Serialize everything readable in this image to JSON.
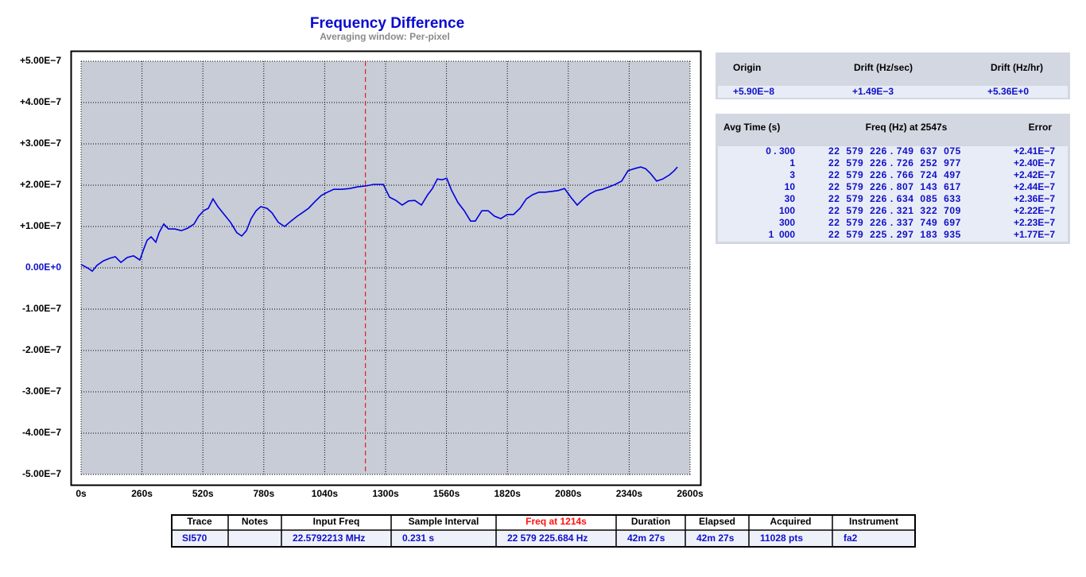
{
  "chart_data": {
    "type": "line",
    "title": "Frequency Difference",
    "subtitle": "Averaging window: Per-pixel",
    "color": "#0000e0",
    "grid": true,
    "cursor_x": 1214,
    "cursor_color": "#e00000",
    "xlim": [
      0,
      2600
    ],
    "xticks": [
      {
        "value": 0,
        "label": "0s"
      },
      {
        "value": 260,
        "label": "260s"
      },
      {
        "value": 520,
        "label": "520s"
      },
      {
        "value": 780,
        "label": "780s"
      },
      {
        "value": 1040,
        "label": "1040s"
      },
      {
        "value": 1300,
        "label": "1300s"
      },
      {
        "value": 1560,
        "label": "1560s"
      },
      {
        "value": 1820,
        "label": "1820s"
      },
      {
        "value": 2080,
        "label": "2080s"
      },
      {
        "value": 2340,
        "label": "2340s"
      },
      {
        "value": 2600,
        "label": "2600s"
      }
    ],
    "ylim": [
      -5e-07,
      5e-07
    ],
    "yticks": [
      {
        "value": 5e-07,
        "label": "+5.00E−7"
      },
      {
        "value": 4e-07,
        "label": "+4.00E−7"
      },
      {
        "value": 3e-07,
        "label": "+3.00E−7"
      },
      {
        "value": 2e-07,
        "label": "+2.00E−7"
      },
      {
        "value": 1e-07,
        "label": "+1.00E−7"
      },
      {
        "value": 0,
        "label": "0.00E+0"
      },
      {
        "value": -1e-07,
        "label": "-1.00E−7"
      },
      {
        "value": -2e-07,
        "label": "-2.00E−7"
      },
      {
        "value": -3e-07,
        "label": "-3.00E−7"
      },
      {
        "value": -4e-07,
        "label": "-4.00E−7"
      },
      {
        "value": -5e-07,
        "label": "-5.00E−7"
      }
    ],
    "x": [
      0,
      27,
      48,
      68,
      95,
      122,
      146,
      170,
      197,
      224,
      251,
      265,
      282,
      299,
      319,
      333,
      353,
      373,
      400,
      428,
      455,
      482,
      502,
      523,
      543,
      563,
      584,
      611,
      638,
      665,
      686,
      706,
      726,
      747,
      767,
      794,
      815,
      842,
      869,
      896,
      923,
      944,
      971,
      998,
      1025,
      1052,
      1079,
      1113,
      1147,
      1181,
      1215,
      1249,
      1290,
      1317,
      1344,
      1371,
      1398,
      1425,
      1453,
      1480,
      1500,
      1521,
      1541,
      1561,
      1582,
      1609,
      1636,
      1663,
      1683,
      1711,
      1738,
      1765,
      1792,
      1819,
      1846,
      1874,
      1901,
      1928,
      1955,
      1982,
      2009,
      2036,
      2064,
      2091,
      2118,
      2145,
      2172,
      2199,
      2226,
      2254,
      2281,
      2308,
      2335,
      2362,
      2389,
      2410,
      2430,
      2457,
      2484,
      2512,
      2532,
      2546
    ],
    "values": [
      8e-09,
      0,
      -8e-09,
      6e-09,
      1.7e-08,
      2.3e-08,
      2.7e-08,
      1.3e-08,
      2.5e-08,
      2.9e-08,
      1.9e-08,
      4.2e-08,
      6.7e-08,
      7.5e-08,
      6.2e-08,
      8.5e-08,
      1.06e-07,
      9.4e-08,
      9.4e-08,
      9e-08,
      9.6e-08,
      1.06e-07,
      1.25e-07,
      1.38e-07,
      1.44e-07,
      1.67e-07,
      1.48e-07,
      1.29e-07,
      1.1e-07,
      8.5e-08,
      7.7e-08,
      9e-08,
      1.19e-07,
      1.38e-07,
      1.48e-07,
      1.44e-07,
      1.33e-07,
      1.1e-07,
      1e-07,
      1.13e-07,
      1.25e-07,
      1.33e-07,
      1.44e-07,
      1.6e-07,
      1.75e-07,
      1.83e-07,
      1.9e-07,
      1.9e-07,
      1.92e-07,
      1.96e-07,
      1.98e-07,
      2.02e-07,
      2.02e-07,
      1.71e-07,
      1.63e-07,
      1.52e-07,
      1.62e-07,
      1.63e-07,
      1.52e-07,
      1.77e-07,
      1.92e-07,
      2.15e-07,
      2.13e-07,
      2.17e-07,
      1.87e-07,
      1.58e-07,
      1.38e-07,
      1.13e-07,
      1.13e-07,
      1.38e-07,
      1.38e-07,
      1.25e-07,
      1.19e-07,
      1.29e-07,
      1.29e-07,
      1.44e-07,
      1.67e-07,
      1.77e-07,
      1.83e-07,
      1.83e-07,
      1.85e-07,
      1.87e-07,
      1.92e-07,
      1.71e-07,
      1.52e-07,
      1.67e-07,
      1.79e-07,
      1.87e-07,
      1.9e-07,
      1.96e-07,
      2.02e-07,
      2.1e-07,
      2.35e-07,
      2.4e-07,
      2.44e-07,
      2.4e-07,
      2.29e-07,
      2.1e-07,
      2.15e-07,
      2.25e-07,
      2.35e-07,
      2.44e-07
    ]
  },
  "origin_table": {
    "columns": [
      "Origin",
      "Drift (Hz/sec)",
      "Drift (Hz/hr)"
    ],
    "rows": [
      [
        "+5.90E−8",
        "+1.49E−3",
        "+5.36E+0"
      ]
    ]
  },
  "avg_table": {
    "columns": [
      "Avg Time (s)",
      "Freq (Hz) at 2547s",
      "Error"
    ],
    "rows": [
      [
        "0 . 300",
        "22  579  226 . 749  637  075",
        "+2.41E−7"
      ],
      [
        "1",
        "22  579  226 . 726  252  977",
        "+2.40E−7"
      ],
      [
        "3",
        "22  579  226 . 766  724  497",
        "+2.42E−7"
      ],
      [
        "10",
        "22  579  226 . 807  143  617",
        "+2.44E−7"
      ],
      [
        "30",
        "22  579  226 . 634  085  633",
        "+2.36E−7"
      ],
      [
        "100",
        "22  579  226 . 321  322  709",
        "+2.22E−7"
      ],
      [
        "300",
        "22  579  226 . 337  749  697",
        "+2.23E−7"
      ],
      [
        "1  000",
        "22  579  225 . 297  183  935",
        "+1.77E−7"
      ]
    ]
  },
  "info_table": {
    "columns": [
      "Trace",
      "Notes",
      "Input Freq",
      "Sample Interval",
      "Freq at 1214s",
      "Duration",
      "Elapsed",
      "Acquired",
      "Instrument"
    ],
    "rows": [
      [
        "SI570",
        "",
        "22.5792213 MHz",
        "0.231 s",
        "22 579 225.684 Hz",
        "42m 27s",
        "42m 27s",
        "11028 pts",
        "fa2"
      ]
    ]
  }
}
